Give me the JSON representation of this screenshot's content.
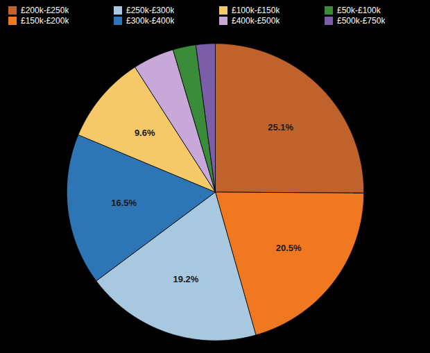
{
  "chart_data": {
    "type": "pie",
    "categories": [
      "£200k-£250k",
      "£150k-£200k",
      "£250k-£300k",
      "£300k-£400k",
      "£100k-£150k",
      "£400k-£500k",
      "£50k-£100k",
      "£500k-£750k"
    ],
    "values": [
      25.1,
      20.5,
      19.2,
      16.5,
      9.6,
      4.5,
      2.5,
      2.1
    ],
    "value_labels": [
      "25.1%",
      "20.5%",
      "19.2%",
      "16.5%",
      "9.6%",
      null,
      null,
      null
    ],
    "colors": [
      "#c0622b",
      "#f07820",
      "#a8c8e0",
      "#2e75b6",
      "#f5c96a",
      "#c8a8d8",
      "#3a8c3a",
      "#7b5ea7"
    ],
    "data_labels": true,
    "legend": "top"
  }
}
